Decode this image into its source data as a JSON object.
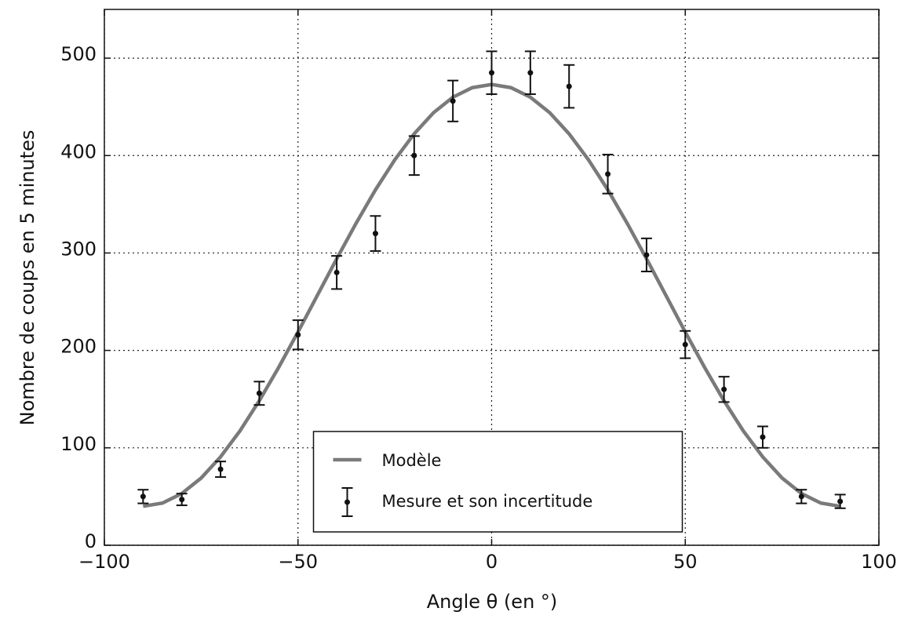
{
  "chart_data": {
    "type": "line",
    "xlabel": "Angle θ (en °)",
    "ylabel": "Nombre de coups en 5 minutes",
    "xlim": [
      -100,
      100
    ],
    "ylim": [
      0,
      550
    ],
    "xticks": [
      {
        "value": -100,
        "label": "−100"
      },
      {
        "value": -50,
        "label": "−50"
      },
      0,
      50,
      100
    ],
    "yticks": [
      0,
      100,
      200,
      300,
      400,
      500
    ],
    "grid": true,
    "legend": "lower center",
    "series": [
      {
        "name": "Modèle",
        "type": "line",
        "color": "#7a7a7a",
        "x": [
          -90,
          -85,
          -80,
          -75,
          -70,
          -65,
          -60,
          -55,
          -50,
          -45,
          -40,
          -35,
          -30,
          -25,
          -20,
          -15,
          -10,
          -5,
          0,
          5,
          10,
          15,
          20,
          25,
          30,
          35,
          40,
          45,
          50,
          55,
          60,
          65,
          70,
          75,
          80,
          85,
          90
        ],
        "values": [
          40,
          43.3,
          53.1,
          69.0,
          90.7,
          117.3,
          148.3,
          182.5,
          218.9,
          256.5,
          294.1,
          330.5,
          364.8,
          395.7,
          422.3,
          444.0,
          459.9,
          469.7,
          473,
          469.7,
          459.9,
          444.0,
          422.3,
          395.7,
          364.8,
          330.5,
          294.1,
          256.5,
          218.9,
          182.5,
          148.3,
          117.3,
          90.7,
          69.0,
          53.1,
          43.3,
          40
        ]
      },
      {
        "name": "Mesure et son incertitude",
        "type": "errorbar",
        "color": "#111111",
        "x": [
          -90,
          -80,
          -70,
          -60,
          -50,
          -40,
          -30,
          -20,
          -10,
          0,
          10,
          20,
          30,
          40,
          50,
          60,
          70,
          80,
          90
        ],
        "values": [
          50,
          47,
          78,
          156,
          216,
          280,
          320,
          400,
          456,
          485,
          485,
          471,
          381,
          298,
          206,
          160,
          111,
          50,
          45
        ],
        "errors": [
          7,
          6,
          8,
          12,
          15,
          17,
          18,
          20,
          21,
          22,
          22,
          22,
          20,
          17,
          14,
          13,
          11,
          7,
          7
        ]
      }
    ]
  }
}
